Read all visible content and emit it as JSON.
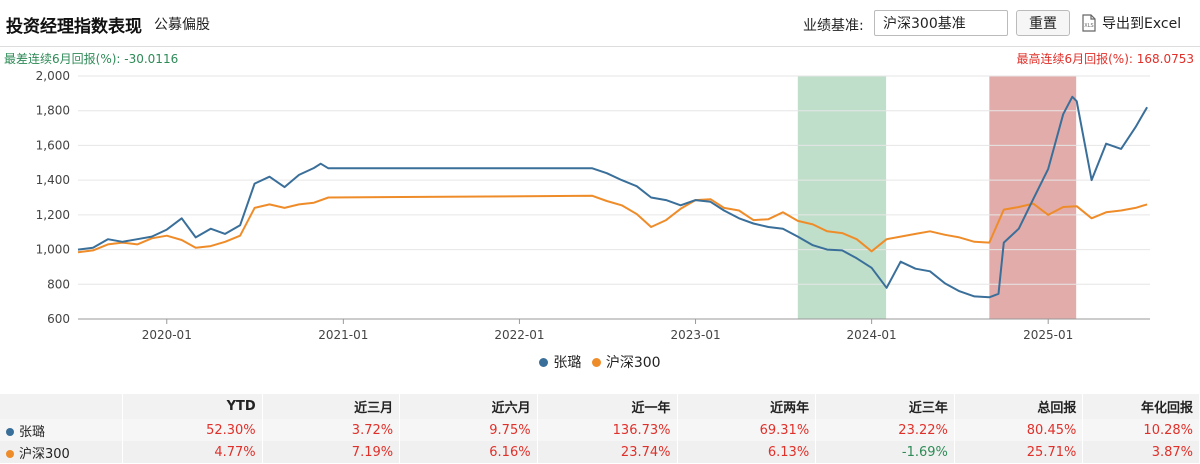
{
  "header": {
    "title": "投资经理指数表现",
    "subtitle": "公募偏股",
    "benchmark_label": "业绩基准:",
    "benchmark_value": "沪深300基准",
    "reset_label": "重置",
    "export_label": "导出到Excel"
  },
  "stats": {
    "worst": "最差连续6月回报(%): -30.0116",
    "best": "最高连续6月回报(%): 168.0753"
  },
  "colors": {
    "manager": "#3a6f9a",
    "index": "#ef8c2a",
    "worst_band": "#b9dcc4",
    "best_band": "#dfa3a1",
    "positive": "#e0302a",
    "negative": "#2e8b57"
  },
  "chart_data": {
    "type": "line",
    "ylim": [
      600,
      2000
    ],
    "yticks": [
      "600",
      "800",
      "1,000",
      "1,200",
      "1,400",
      "1,600",
      "1,800",
      "2,000"
    ],
    "xlim": [
      "2019-07-01",
      "2025-07-31"
    ],
    "xticks": [
      {
        "date": "2020-01-01",
        "label": "2020-01"
      },
      {
        "date": "2021-01-01",
        "label": "2021-01"
      },
      {
        "date": "2022-01-01",
        "label": "2022-01"
      },
      {
        "date": "2023-01-01",
        "label": "2023-01"
      },
      {
        "date": "2024-01-01",
        "label": "2024-01"
      },
      {
        "date": "2025-01-01",
        "label": "2025-01"
      }
    ],
    "bands": [
      {
        "kind": "worst",
        "from": "2023-08-01",
        "to": "2024-01-31"
      },
      {
        "kind": "best",
        "from": "2024-09-01",
        "to": "2025-02-28"
      }
    ],
    "series": [
      {
        "name": "张璐",
        "points": [
          [
            "2019-07-01",
            1000
          ],
          [
            "2019-08-01",
            1010
          ],
          [
            "2019-09-01",
            1060
          ],
          [
            "2019-10-01",
            1045
          ],
          [
            "2019-11-01",
            1060
          ],
          [
            "2019-12-01",
            1075
          ],
          [
            "2020-01-01",
            1115
          ],
          [
            "2020-02-01",
            1180
          ],
          [
            "2020-03-01",
            1070
          ],
          [
            "2020-04-01",
            1120
          ],
          [
            "2020-05-01",
            1090
          ],
          [
            "2020-06-01",
            1140
          ],
          [
            "2020-07-01",
            1380
          ],
          [
            "2020-08-01",
            1420
          ],
          [
            "2020-09-01",
            1360
          ],
          [
            "2020-10-01",
            1430
          ],
          [
            "2020-11-01",
            1470
          ],
          [
            "2020-11-15",
            1495
          ],
          [
            "2020-12-01",
            1468
          ],
          [
            "2022-06-01",
            1468
          ],
          [
            "2022-07-01",
            1440
          ],
          [
            "2022-08-01",
            1400
          ],
          [
            "2022-09-01",
            1365
          ],
          [
            "2022-10-01",
            1300
          ],
          [
            "2022-11-01",
            1285
          ],
          [
            "2022-12-01",
            1255
          ],
          [
            "2023-01-01",
            1285
          ],
          [
            "2023-02-01",
            1275
          ],
          [
            "2023-03-01",
            1225
          ],
          [
            "2023-04-01",
            1180
          ],
          [
            "2023-05-01",
            1150
          ],
          [
            "2023-06-01",
            1130
          ],
          [
            "2023-07-01",
            1120
          ],
          [
            "2023-08-01",
            1075
          ],
          [
            "2023-09-01",
            1025
          ],
          [
            "2023-10-01",
            1000
          ],
          [
            "2023-11-01",
            995
          ],
          [
            "2023-12-01",
            950
          ],
          [
            "2024-01-01",
            895
          ],
          [
            "2024-02-01",
            780
          ],
          [
            "2024-03-01",
            930
          ],
          [
            "2024-04-01",
            890
          ],
          [
            "2024-05-01",
            875
          ],
          [
            "2024-06-01",
            805
          ],
          [
            "2024-07-01",
            760
          ],
          [
            "2024-08-01",
            730
          ],
          [
            "2024-09-01",
            725
          ],
          [
            "2024-09-20",
            745
          ],
          [
            "2024-10-01",
            1040
          ],
          [
            "2024-11-01",
            1120
          ],
          [
            "2024-12-01",
            1290
          ],
          [
            "2025-01-01",
            1465
          ],
          [
            "2025-02-01",
            1780
          ],
          [
            "2025-02-20",
            1880
          ],
          [
            "2025-03-01",
            1855
          ],
          [
            "2025-04-01",
            1400
          ],
          [
            "2025-05-01",
            1610
          ],
          [
            "2025-06-01",
            1580
          ],
          [
            "2025-07-01",
            1705
          ],
          [
            "2025-07-25",
            1820
          ]
        ]
      },
      {
        "name": "沪深300",
        "points": [
          [
            "2019-07-01",
            985
          ],
          [
            "2019-08-01",
            995
          ],
          [
            "2019-09-01",
            1030
          ],
          [
            "2019-10-01",
            1040
          ],
          [
            "2019-11-01",
            1030
          ],
          [
            "2019-12-01",
            1065
          ],
          [
            "2020-01-01",
            1080
          ],
          [
            "2020-02-01",
            1055
          ],
          [
            "2020-03-01",
            1010
          ],
          [
            "2020-04-01",
            1020
          ],
          [
            "2020-05-01",
            1045
          ],
          [
            "2020-06-01",
            1080
          ],
          [
            "2020-07-01",
            1240
          ],
          [
            "2020-08-01",
            1260
          ],
          [
            "2020-09-01",
            1240
          ],
          [
            "2020-10-01",
            1260
          ],
          [
            "2020-11-01",
            1270
          ],
          [
            "2020-12-01",
            1300
          ],
          [
            "2022-06-01",
            1310
          ],
          [
            "2022-07-01",
            1280
          ],
          [
            "2022-08-01",
            1255
          ],
          [
            "2022-09-01",
            1205
          ],
          [
            "2022-10-01",
            1130
          ],
          [
            "2022-11-01",
            1170
          ],
          [
            "2022-12-01",
            1235
          ],
          [
            "2023-01-01",
            1285
          ],
          [
            "2023-02-01",
            1290
          ],
          [
            "2023-03-01",
            1240
          ],
          [
            "2023-04-01",
            1225
          ],
          [
            "2023-05-01",
            1170
          ],
          [
            "2023-06-01",
            1175
          ],
          [
            "2023-07-01",
            1215
          ],
          [
            "2023-08-01",
            1165
          ],
          [
            "2023-09-01",
            1145
          ],
          [
            "2023-10-01",
            1105
          ],
          [
            "2023-11-01",
            1095
          ],
          [
            "2023-12-01",
            1060
          ],
          [
            "2024-01-01",
            990
          ],
          [
            "2024-02-01",
            1060
          ],
          [
            "2024-03-01",
            1075
          ],
          [
            "2024-04-01",
            1090
          ],
          [
            "2024-05-01",
            1105
          ],
          [
            "2024-06-01",
            1085
          ],
          [
            "2024-07-01",
            1070
          ],
          [
            "2024-08-01",
            1045
          ],
          [
            "2024-09-01",
            1040
          ],
          [
            "2024-10-01",
            1230
          ],
          [
            "2024-11-01",
            1245
          ],
          [
            "2024-12-01",
            1265
          ],
          [
            "2025-01-01",
            1200
          ],
          [
            "2025-02-01",
            1245
          ],
          [
            "2025-03-01",
            1250
          ],
          [
            "2025-04-01",
            1180
          ],
          [
            "2025-05-01",
            1215
          ],
          [
            "2025-06-01",
            1225
          ],
          [
            "2025-07-01",
            1240
          ],
          [
            "2025-07-25",
            1260
          ]
        ]
      }
    ]
  },
  "table": {
    "headers": [
      "",
      "YTD",
      "近三月",
      "近六月",
      "近一年",
      "近两年",
      "近三年",
      "总回报",
      "年化回报"
    ],
    "rows": [
      {
        "name": "张璐",
        "values": [
          "52.30%",
          "3.72%",
          "9.75%",
          "136.73%",
          "69.31%",
          "23.22%",
          "80.45%",
          "10.28%"
        ]
      },
      {
        "name": "沪深300",
        "values": [
          "4.77%",
          "7.19%",
          "6.16%",
          "23.74%",
          "6.13%",
          "-1.69%",
          "25.71%",
          "3.87%"
        ]
      }
    ]
  }
}
